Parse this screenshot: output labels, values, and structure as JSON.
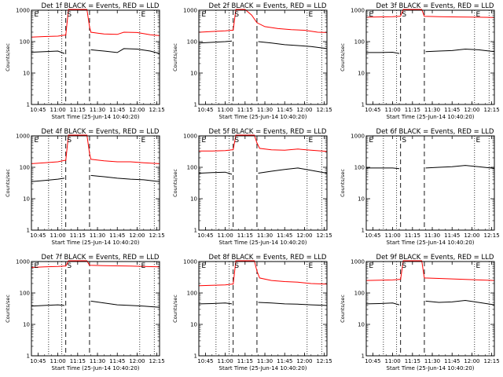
{
  "figure": {
    "start_time_label": "Start Time (25-Jun-14 10:40:20)",
    "ylabel": "Counts/sec",
    "colors": {
      "events": "#000000",
      "lld": "#ff0000",
      "axes": "#000000"
    }
  },
  "chart_data": [
    {
      "type": "line",
      "title": "Det 1f BLACK = Events, RED = LLD",
      "xlabel": "Start Time (25-Jun-14 10:40:20)",
      "ylabel": "Counts/sec",
      "xticks": [
        "10:45",
        "11:00",
        "11:15",
        "11:30",
        "11:45",
        "12:00",
        "12:15"
      ],
      "yticks": [
        "1",
        "10",
        "100",
        "1000"
      ],
      "xlim": [
        "10:40",
        "12:17"
      ],
      "ylim": [
        1,
        1000
      ],
      "yscale": "log",
      "dotted_lines": [
        "10:53",
        "11:03",
        "12:02",
        "12:13"
      ],
      "dashed_lines": [
        "11:06",
        "11:24"
      ],
      "flags": [
        {
          "label": "E",
          "x": "10:42"
        },
        {
          "label": "S",
          "x": "11:07"
        },
        {
          "label": "E",
          "x": "12:03"
        }
      ],
      "series": [
        {
          "name": "LLD",
          "color": "#ff0000",
          "x": [
            "10:40",
            "10:50",
            "11:00",
            "11:05",
            "11:06",
            "11:08",
            "11:22",
            "11:24",
            "11:25",
            "11:35",
            "11:45",
            "11:50",
            "12:00",
            "12:10",
            "12:17"
          ],
          "values": [
            140,
            145,
            150,
            160,
            160,
            1200,
            1200,
            300,
            200,
            175,
            170,
            200,
            195,
            165,
            155
          ]
        },
        {
          "name": "Events",
          "color": "#000000",
          "x": [
            "10:40",
            "10:50",
            "11:00",
            "11:05",
            "11:24",
            "11:25",
            "11:35",
            "11:45",
            "11:50",
            "12:00",
            "12:10",
            "12:17"
          ],
          "values": [
            46,
            48,
            50,
            42,
            null,
            55,
            50,
            45,
            60,
            58,
            50,
            42
          ]
        }
      ]
    },
    {
      "type": "line",
      "title": "Det 2f BLACK = Events, RED = LLD",
      "xlabel": "Start Time (25-Jun-14 10:40:20)",
      "ylabel": "Counts/sec",
      "xticks": [
        "10:45",
        "11:00",
        "11:15",
        "11:30",
        "11:45",
        "12:00",
        "12:15"
      ],
      "yticks": [
        "1",
        "10",
        "100",
        "1000"
      ],
      "xlim": [
        "10:40",
        "12:17"
      ],
      "ylim": [
        1,
        1000
      ],
      "yscale": "log",
      "dotted_lines": [
        "10:53",
        "11:03",
        "12:02",
        "12:13"
      ],
      "dashed_lines": [
        "11:06",
        "11:24"
      ],
      "flags": [
        {
          "label": "E",
          "x": "10:42"
        },
        {
          "label": "S",
          "x": "11:07"
        },
        {
          "label": "E",
          "x": "12:03"
        }
      ],
      "series": [
        {
          "name": "LLD",
          "color": "#ff0000",
          "x": [
            "10:40",
            "10:50",
            "11:00",
            "11:05",
            "11:06",
            "11:08",
            "11:15",
            "11:20",
            "11:24",
            "11:30",
            "11:40",
            "11:50",
            "12:00",
            "12:10",
            "12:17"
          ],
          "values": [
            200,
            210,
            220,
            230,
            230,
            1200,
            1200,
            700,
            400,
            300,
            260,
            240,
            230,
            200,
            195
          ]
        },
        {
          "name": "Events",
          "color": "#000000",
          "x": [
            "10:40",
            "10:50",
            "11:00",
            "11:05",
            "11:24",
            "11:25",
            "11:35",
            "11:45",
            "11:55",
            "12:05",
            "12:17"
          ],
          "values": [
            90,
            95,
            100,
            105,
            null,
            100,
            90,
            80,
            75,
            70,
            60
          ]
        }
      ]
    },
    {
      "type": "line",
      "title": "Det 3f BLACK = Events, RED = LLD",
      "xlabel": "Start Time (25-Jun-14 10:40:20)",
      "ylabel": "Counts/sec",
      "xticks": [
        "10:45",
        "11:00",
        "11:15",
        "11:30",
        "11:45",
        "12:00",
        "12:15"
      ],
      "yticks": [
        "1",
        "10",
        "100",
        "1000"
      ],
      "xlim": [
        "10:40",
        "12:17"
      ],
      "ylim": [
        1,
        1000
      ],
      "yscale": "log",
      "dotted_lines": [
        "10:53",
        "11:03",
        "12:02",
        "12:13"
      ],
      "dashed_lines": [
        "11:06",
        "11:24"
      ],
      "flags": [
        {
          "label": "E",
          "x": "10:42"
        },
        {
          "label": "S",
          "x": "11:07"
        },
        {
          "label": "E",
          "x": "12:03"
        }
      ],
      "series": [
        {
          "name": "LLD",
          "color": "#ff0000",
          "x": [
            "10:40",
            "11:00",
            "11:05",
            "11:06",
            "11:08",
            "11:22",
            "11:24",
            "11:35",
            "11:50",
            "12:05",
            "12:17"
          ],
          "values": [
            600,
            620,
            640,
            650,
            1200,
            1200,
            640,
            620,
            610,
            600,
            590
          ]
        },
        {
          "name": "Events",
          "color": "#000000",
          "x": [
            "10:40",
            "10:50",
            "11:00",
            "11:05",
            "11:24",
            "11:25",
            "11:35",
            "11:45",
            "11:55",
            "12:05",
            "12:17"
          ],
          "values": [
            45,
            45,
            46,
            42,
            null,
            48,
            50,
            52,
            58,
            55,
            48
          ]
        }
      ]
    },
    {
      "type": "line",
      "title": "Det 4f BLACK = Events, RED = LLD",
      "xlabel": "Start Time (25-Jun-14 10:40:20)",
      "ylabel": "Counts/sec",
      "xticks": [
        "10:45",
        "11:00",
        "11:15",
        "11:30",
        "11:45",
        "12:00",
        "12:15"
      ],
      "yticks": [
        "1",
        "10",
        "100",
        "1000"
      ],
      "xlim": [
        "10:40",
        "12:17"
      ],
      "ylim": [
        1,
        1000
      ],
      "yscale": "log",
      "dotted_lines": [
        "10:53",
        "11:03",
        "12:02",
        "12:13"
      ],
      "dashed_lines": [
        "11:06",
        "11:24"
      ],
      "flags": [
        {
          "label": "E",
          "x": "10:42"
        },
        {
          "label": "S",
          "x": "11:07"
        },
        {
          "label": "E",
          "x": "12:03"
        }
      ],
      "series": [
        {
          "name": "LLD",
          "color": "#ff0000",
          "x": [
            "10:40",
            "10:50",
            "11:00",
            "11:05",
            "11:06",
            "11:08",
            "11:22",
            "11:24",
            "11:25",
            "11:35",
            "11:45",
            "11:55",
            "12:05",
            "12:17"
          ],
          "values": [
            130,
            140,
            150,
            165,
            165,
            1200,
            1200,
            280,
            180,
            160,
            150,
            150,
            140,
            130
          ]
        },
        {
          "name": "Events",
          "color": "#000000",
          "x": [
            "10:40",
            "10:50",
            "11:00",
            "11:05",
            "11:24",
            "11:25",
            "11:35",
            "11:45",
            "11:55",
            "12:05",
            "12:17"
          ],
          "values": [
            35,
            38,
            42,
            45,
            null,
            55,
            50,
            45,
            42,
            40,
            35
          ]
        }
      ]
    },
    {
      "type": "line",
      "title": "Det 5f BLACK = Events, RED = LLD",
      "xlabel": "Start Time (25-Jun-14 10:40:20)",
      "ylabel": "Counts/sec",
      "xticks": [
        "10:45",
        "11:00",
        "11:15",
        "11:30",
        "11:45",
        "12:00",
        "12:15"
      ],
      "yticks": [
        "1",
        "10",
        "100",
        "1000"
      ],
      "xlim": [
        "10:40",
        "12:17"
      ],
      "ylim": [
        1,
        1000
      ],
      "yscale": "log",
      "dotted_lines": [
        "10:53",
        "11:03",
        "12:02",
        "12:13"
      ],
      "dashed_lines": [
        "11:06",
        "11:24"
      ],
      "flags": [
        {
          "label": "E",
          "x": "10:42"
        },
        {
          "label": "S",
          "x": "11:07"
        },
        {
          "label": "E",
          "x": "12:03"
        }
      ],
      "series": [
        {
          "name": "LLD",
          "color": "#ff0000",
          "x": [
            "10:40",
            "10:50",
            "11:00",
            "11:05",
            "11:06",
            "11:08",
            "11:22",
            "11:24",
            "11:26",
            "11:35",
            "11:45",
            "11:55",
            "12:05",
            "12:17"
          ],
          "values": [
            330,
            330,
            340,
            360,
            360,
            1200,
            1200,
            600,
            400,
            360,
            350,
            380,
            350,
            320
          ]
        },
        {
          "name": "Events",
          "color": "#000000",
          "x": [
            "10:40",
            "10:50",
            "11:00",
            "11:05",
            "11:24",
            "11:25",
            "11:35",
            "11:45",
            "11:55",
            "12:05",
            "12:17"
          ],
          "values": [
            65,
            68,
            70,
            60,
            null,
            65,
            75,
            85,
            95,
            80,
            65
          ]
        }
      ]
    },
    {
      "type": "line",
      "title": "Det 6f BLACK = Events, RED = LLD",
      "xlabel": "Start Time (25-Jun-14 10:40:20)",
      "ylabel": "Counts/sec",
      "xticks": [
        "10:45",
        "11:00",
        "11:15",
        "11:30",
        "11:45",
        "12:00",
        "12:15"
      ],
      "yticks": [
        "1",
        "10",
        "100",
        "1000"
      ],
      "xlim": [
        "10:40",
        "12:17"
      ],
      "ylim": [
        1,
        1000
      ],
      "yscale": "log",
      "dotted_lines": [
        "10:53",
        "11:03",
        "12:02",
        "12:13"
      ],
      "dashed_lines": [
        "11:06",
        "11:24"
      ],
      "flags": [
        {
          "label": "E",
          "x": "10:42"
        },
        {
          "label": "S",
          "x": "11:07"
        },
        {
          "label": "E",
          "x": "12:03"
        }
      ],
      "series": [
        {
          "name": "Events",
          "color": "#000000",
          "x": [
            "10:40",
            "10:50",
            "11:00",
            "11:05",
            "11:24",
            "11:25",
            "11:35",
            "11:45",
            "11:55",
            "12:05",
            "12:17"
          ],
          "values": [
            95,
            95,
            95,
            90,
            null,
            95,
            100,
            105,
            115,
            105,
            92
          ]
        }
      ]
    },
    {
      "type": "line",
      "title": "Det 7f BLACK = Events, RED = LLD",
      "xlabel": "Start Time (25-Jun-14 10:40:20)",
      "ylabel": "Counts/sec",
      "xticks": [
        "10:45",
        "11:00",
        "11:15",
        "11:30",
        "11:45",
        "12:00",
        "12:15"
      ],
      "yticks": [
        "1",
        "10",
        "100",
        "1000"
      ],
      "xlim": [
        "10:40",
        "12:17"
      ],
      "ylim": [
        1,
        1000
      ],
      "yscale": "log",
      "dotted_lines": [
        "10:53",
        "11:03",
        "12:02",
        "12:13"
      ],
      "dashed_lines": [
        "11:06",
        "11:24"
      ],
      "flags": [
        {
          "label": "E",
          "x": "10:42"
        },
        {
          "label": "S",
          "x": "11:07"
        },
        {
          "label": "E",
          "x": "12:03"
        }
      ],
      "series": [
        {
          "name": "LLD",
          "color": "#ff0000",
          "x": [
            "10:40",
            "10:50",
            "11:00",
            "11:05",
            "11:06",
            "11:08",
            "11:22",
            "11:24",
            "11:35",
            "11:45",
            "11:55",
            "12:05",
            "12:17"
          ],
          "values": [
            650,
            680,
            700,
            720,
            720,
            1200,
            1200,
            760,
            740,
            730,
            720,
            700,
            680
          ]
        },
        {
          "name": "Events",
          "color": "#000000",
          "x": [
            "10:40",
            "10:50",
            "11:00",
            "11:05",
            "11:24",
            "11:25",
            "11:35",
            "11:45",
            "11:55",
            "12:05",
            "12:17"
          ],
          "values": [
            38,
            40,
            42,
            40,
            null,
            55,
            48,
            42,
            40,
            38,
            35
          ]
        }
      ]
    },
    {
      "type": "line",
      "title": "Det 8f BLACK = Events, RED = LLD",
      "xlabel": "Start Time (25-Jun-14 10:40:20)",
      "ylabel": "Counts/sec",
      "xticks": [
        "10:45",
        "11:00",
        "11:15",
        "11:30",
        "11:45",
        "12:00",
        "12:15"
      ],
      "yticks": [
        "1",
        "10",
        "100",
        "1000"
      ],
      "xlim": [
        "10:40",
        "12:17"
      ],
      "ylim": [
        1,
        1000
      ],
      "yscale": "log",
      "dotted_lines": [
        "10:53",
        "11:03",
        "12:02",
        "12:13"
      ],
      "dashed_lines": [
        "11:06",
        "11:24"
      ],
      "flags": [
        {
          "label": "E",
          "x": "10:42"
        },
        {
          "label": "S",
          "x": "11:07"
        },
        {
          "label": "E",
          "x": "12:03"
        }
      ],
      "series": [
        {
          "name": "LLD",
          "color": "#ff0000",
          "x": [
            "10:40",
            "10:50",
            "11:00",
            "11:05",
            "11:06",
            "11:08",
            "11:22",
            "11:24",
            "11:26",
            "11:35",
            "11:45",
            "11:55",
            "12:05",
            "12:17"
          ],
          "values": [
            170,
            175,
            180,
            190,
            190,
            1200,
            1200,
            500,
            300,
            250,
            230,
            220,
            200,
            190
          ]
        },
        {
          "name": "Events",
          "color": "#000000",
          "x": [
            "10:40",
            "10:50",
            "11:00",
            "11:05",
            "11:24",
            "11:25",
            "11:35",
            "11:45",
            "11:55",
            "12:05",
            "12:17"
          ],
          "values": [
            45,
            46,
            48,
            45,
            null,
            50,
            48,
            45,
            44,
            42,
            40
          ]
        }
      ]
    },
    {
      "type": "line",
      "title": "Det 9f BLACK = Events, RED = LLD",
      "xlabel": "Start Time (25-Jun-14 10:40:20)",
      "ylabel": "Counts/sec",
      "xticks": [
        "10:45",
        "11:00",
        "11:15",
        "11:30",
        "11:45",
        "12:00",
        "12:15"
      ],
      "yticks": [
        "1",
        "10",
        "100",
        "1000"
      ],
      "xlim": [
        "10:40",
        "12:17"
      ],
      "ylim": [
        1,
        1000
      ],
      "yscale": "log",
      "dotted_lines": [
        "10:53",
        "11:03",
        "12:02",
        "12:13"
      ],
      "dashed_lines": [
        "11:06",
        "11:24"
      ],
      "flags": [
        {
          "label": "E",
          "x": "10:42"
        },
        {
          "label": "S",
          "x": "11:07"
        },
        {
          "label": "E",
          "x": "12:03"
        }
      ],
      "series": [
        {
          "name": "LLD",
          "color": "#ff0000",
          "x": [
            "10:40",
            "10:50",
            "11:00",
            "11:05",
            "11:06",
            "11:08",
            "11:22",
            "11:24",
            "11:35",
            "11:45",
            "11:55",
            "12:05",
            "12:17"
          ],
          "values": [
            250,
            255,
            260,
            270,
            270,
            1200,
            1200,
            300,
            290,
            280,
            270,
            260,
            250
          ]
        },
        {
          "name": "Events",
          "color": "#000000",
          "x": [
            "10:40",
            "10:50",
            "11:00",
            "11:05",
            "11:24",
            "11:25",
            "11:35",
            "11:45",
            "11:55",
            "12:05",
            "12:17"
          ],
          "values": [
            45,
            46,
            48,
            42,
            null,
            55,
            50,
            52,
            58,
            50,
            42
          ]
        }
      ]
    }
  ]
}
